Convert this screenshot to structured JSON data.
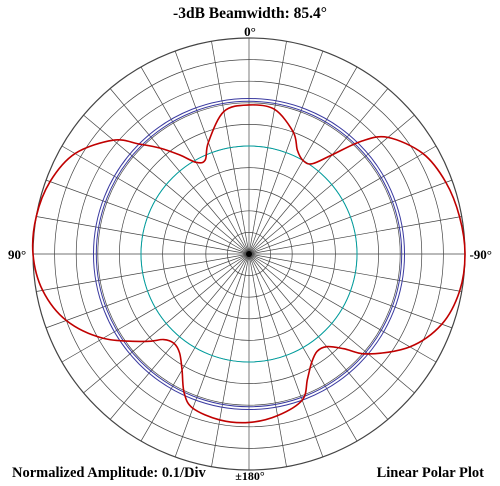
{
  "title": "-3dB Beamwidth: 85.4°",
  "angle_labels": {
    "top": "0°",
    "left": "90°",
    "right": "-90°",
    "bottom": "±180°"
  },
  "footer": {
    "left": "Normalized Amplitude: 0.1/Div",
    "right": "Linear Polar Plot"
  },
  "colors": {
    "grid": "#444444",
    "pattern": "#c00000",
    "reference_half_power": "#3a3aa0",
    "reference_half_amplitude": "#00a0a0"
  },
  "chart_data": {
    "type": "polar-line",
    "scale": "linear",
    "rmax": 1.0,
    "radial_step": 0.1,
    "angular_step_deg": 10,
    "angle_zero": "top",
    "angle_direction": "counterclockwise",
    "reference_circles": [
      {
        "value": 0.707,
        "color": "#3a3aa0"
      },
      {
        "value": 0.72,
        "color": "#3a3aa0"
      },
      {
        "value": 0.5,
        "color": "#00a0a0"
      }
    ],
    "series": [
      {
        "color": "#c00000",
        "angles_deg": [
          0,
          10,
          20,
          25,
          30,
          35,
          40,
          45,
          50,
          60,
          70,
          80,
          90,
          100,
          110,
          120,
          130,
          135,
          140,
          145,
          150,
          155,
          160,
          170,
          180,
          190,
          200,
          205,
          210,
          215,
          220,
          225,
          230,
          240,
          250,
          260,
          270,
          280,
          290,
          300,
          310,
          315,
          320,
          325,
          330,
          335,
          340,
          350
        ],
        "values": [
          0.69,
          0.67,
          0.55,
          0.48,
          0.49,
          0.56,
          0.64,
          0.72,
          0.82,
          0.93,
          0.98,
          1.0,
          1.0,
          0.97,
          0.9,
          0.78,
          0.63,
          0.56,
          0.54,
          0.56,
          0.62,
          0.71,
          0.76,
          0.78,
          0.78,
          0.76,
          0.72,
          0.64,
          0.58,
          0.55,
          0.56,
          0.62,
          0.72,
          0.86,
          0.95,
          0.99,
          1.0,
          0.99,
          0.97,
          0.93,
          0.84,
          0.74,
          0.6,
          0.51,
          0.5,
          0.53,
          0.6,
          0.68
        ]
      }
    ]
  }
}
